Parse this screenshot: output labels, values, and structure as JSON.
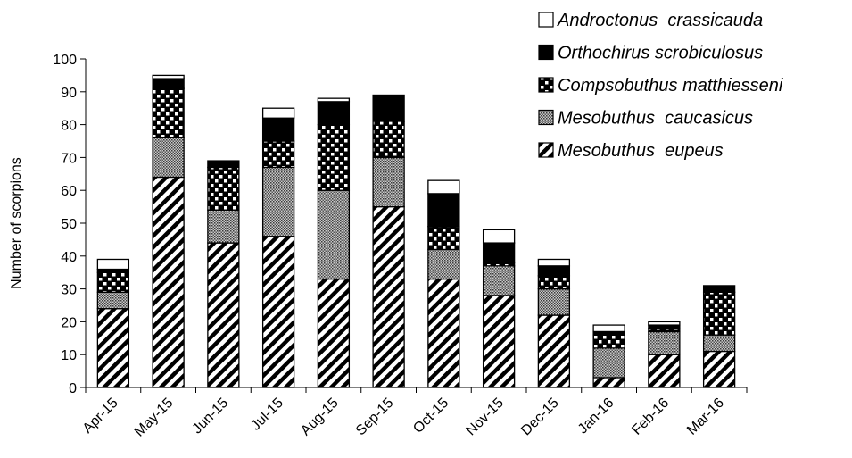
{
  "chart_data": {
    "type": "bar",
    "stacked": true,
    "title": "",
    "xlabel": "",
    "ylabel": "Number of scorpions",
    "ylim": [
      0,
      100
    ],
    "yticks": [
      0,
      10,
      20,
      30,
      40,
      50,
      60,
      70,
      80,
      90,
      100
    ],
    "grid": false,
    "legend_position": "top-right",
    "categories": [
      "Apr-15",
      "May-15",
      "Jun-15",
      "Jul-15",
      "Aug-15",
      "Sep-15",
      "Oct-15",
      "Nov-15",
      "Dec-15",
      "Jan-16",
      "Feb-16",
      "Mar-16"
    ],
    "series": [
      {
        "name": "Mesobuthus  eupeus",
        "pattern": "diagonal-stripes",
        "values": [
          24,
          64,
          44,
          46,
          33,
          55,
          33,
          28,
          22,
          3,
          10,
          11
        ]
      },
      {
        "name": "Mesobuthus  caucasicus",
        "pattern": "dense-dots",
        "values": [
          5,
          12,
          10,
          21,
          27,
          15,
          9,
          9,
          8,
          9,
          7,
          5
        ]
      },
      {
        "name": "Compsobuthus matthiesseni",
        "pattern": "checker",
        "values": [
          6,
          15,
          13,
          8,
          20,
          11,
          7,
          1,
          4,
          4,
          1,
          13
        ]
      },
      {
        "name": "Orthochirus scrobiculosus",
        "pattern": "solid-black",
        "values": [
          1,
          3,
          2,
          7,
          7,
          8,
          10,
          6,
          3,
          1,
          1,
          2
        ]
      },
      {
        "name": "Androctonus  crassicauda",
        "pattern": "white",
        "values": [
          3,
          1,
          0,
          3,
          1,
          0,
          4,
          4,
          2,
          2,
          1,
          0
        ]
      }
    ],
    "legend_order": [
      "Androctonus  crassicauda",
      "Orthochirus scrobiculosus",
      "Compsobuthus matthiesseni",
      "Mesobuthus  caucasicus",
      "Mesobuthus  eupeus"
    ]
  }
}
